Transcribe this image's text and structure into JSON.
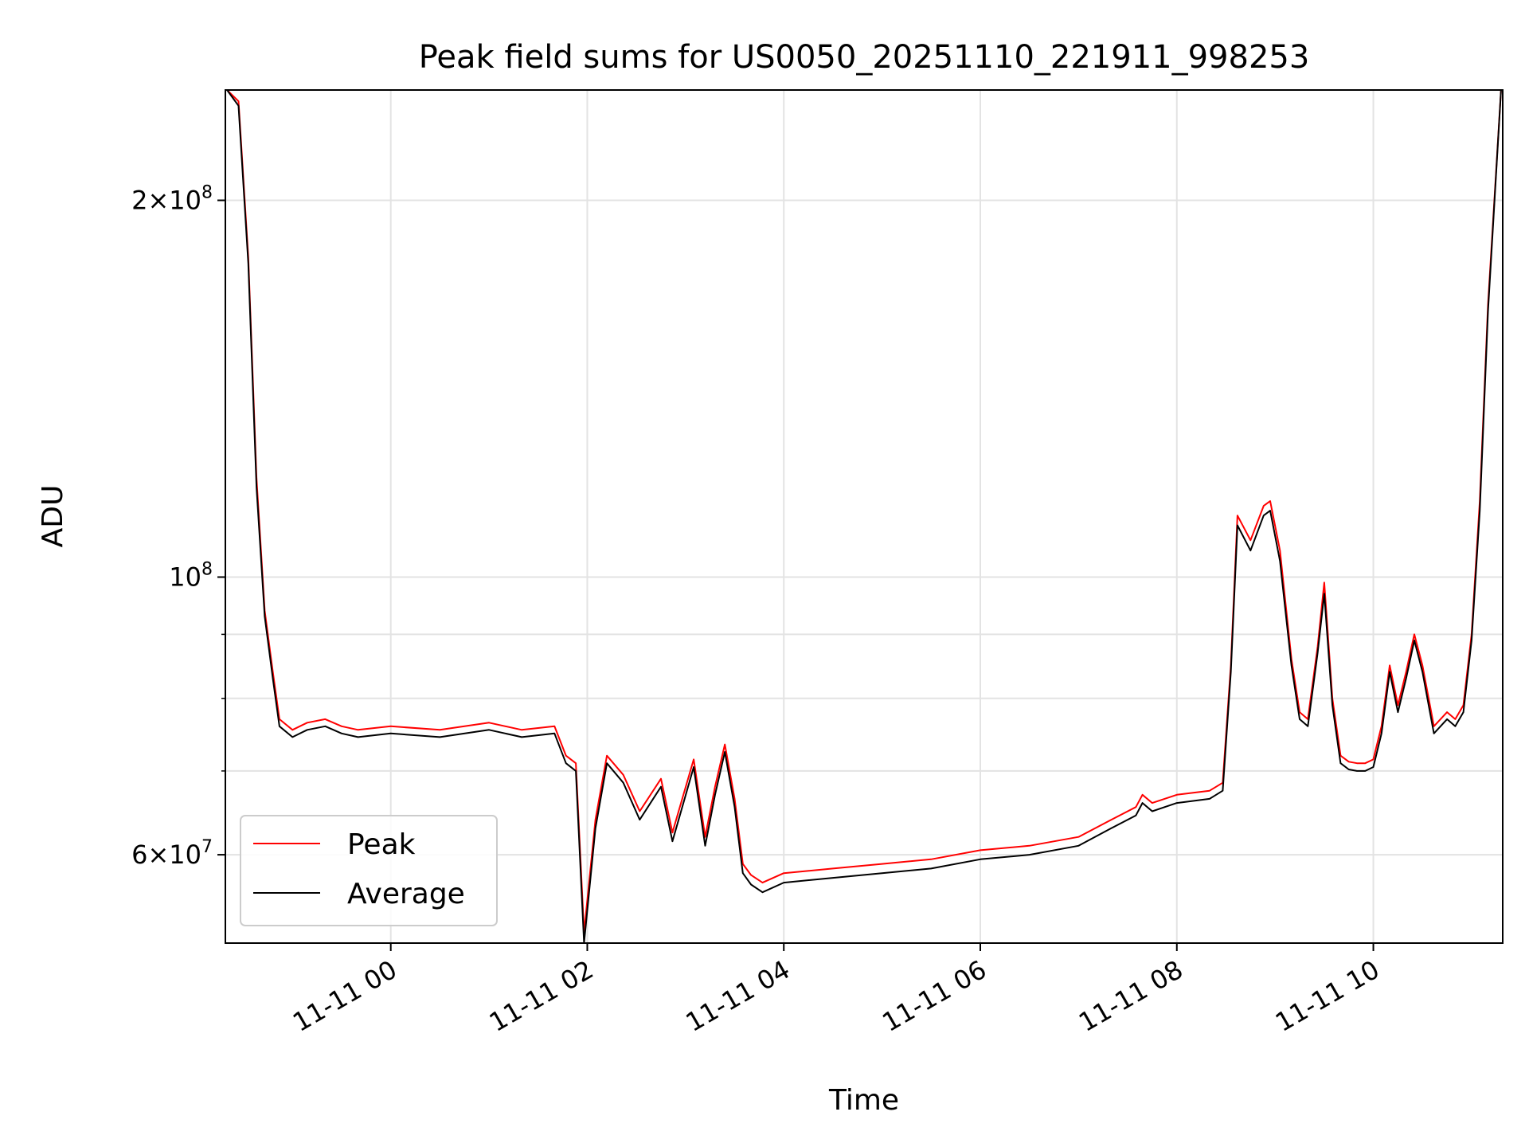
{
  "chart_data": {
    "type": "line",
    "title": "Peak field sums for US0050_20251110_221911_998253",
    "xlabel": "Time",
    "ylabel": "ADU",
    "x_range": [
      "2025-11-10 22:19",
      "2025-11-11 11:19"
    ],
    "ylim": [
      51000000,
      245000000
    ],
    "yscale": "log",
    "grid": true,
    "legend_position": "lower-left",
    "x_ticks": [
      "11-11 00",
      "11-11 02",
      "11-11 04",
      "11-11 06",
      "11-11 08",
      "11-11 10"
    ],
    "y_ticks": [
      {
        "value": 200000000,
        "mantissa": "2",
        "exponent": "8"
      },
      {
        "value": 100000000,
        "mantissa": "",
        "exponent": "8"
      },
      {
        "value": 60000000,
        "mantissa": "6",
        "exponent": "7"
      }
    ],
    "series": [
      {
        "name": "Peak",
        "color": "#ff0000",
        "x": [
          "2025-11-10 22:20",
          "2025-11-10 22:27",
          "2025-11-10 22:33",
          "2025-11-10 22:38",
          "2025-11-10 22:43",
          "2025-11-10 22:48",
          "2025-11-10 22:52",
          "2025-11-10 23:00",
          "2025-11-10 23:09",
          "2025-11-10 23:20",
          "2025-11-10 23:30",
          "2025-11-10 23:40",
          "2025-11-11 00:00",
          "2025-11-11 00:30",
          "2025-11-11 01:00",
          "2025-11-11 01:20",
          "2025-11-11 01:40",
          "2025-11-11 01:47",
          "2025-11-11 01:53",
          "2025-11-11 01:58",
          "2025-11-11 02:05",
          "2025-11-11 02:12",
          "2025-11-11 02:22",
          "2025-11-11 02:32",
          "2025-11-11 02:45",
          "2025-11-11 02:52",
          "2025-11-11 03:05",
          "2025-11-11 03:12",
          "2025-11-11 03:18",
          "2025-11-11 03:24",
          "2025-11-11 03:30",
          "2025-11-11 03:35",
          "2025-11-11 03:40",
          "2025-11-11 03:47",
          "2025-11-11 04:00",
          "2025-11-11 04:30",
          "2025-11-11 05:00",
          "2025-11-11 05:30",
          "2025-11-11 06:00",
          "2025-11-11 06:30",
          "2025-11-11 07:00",
          "2025-11-11 07:20",
          "2025-11-11 07:35",
          "2025-11-11 07:39",
          "2025-11-11 07:45",
          "2025-11-11 08:00",
          "2025-11-11 08:20",
          "2025-11-11 08:28",
          "2025-11-11 08:33",
          "2025-11-11 08:37",
          "2025-11-11 08:45",
          "2025-11-11 08:53",
          "2025-11-11 08:57",
          "2025-11-11 09:03",
          "2025-11-11 09:10",
          "2025-11-11 09:15",
          "2025-11-11 09:20",
          "2025-11-11 09:26",
          "2025-11-11 09:30",
          "2025-11-11 09:35",
          "2025-11-11 09:40",
          "2025-11-11 09:45",
          "2025-11-11 09:50",
          "2025-11-11 09:55",
          "2025-11-11 10:00",
          "2025-11-11 10:05",
          "2025-11-11 10:10",
          "2025-11-11 10:15",
          "2025-11-11 10:20",
          "2025-11-11 10:25",
          "2025-11-11 10:30",
          "2025-11-11 10:37",
          "2025-11-11 10:45",
          "2025-11-11 10:50",
          "2025-11-11 10:55",
          "2025-11-11 11:00",
          "2025-11-11 11:05",
          "2025-11-11 11:10",
          "2025-11-11 11:18"
        ],
        "y": [
          245000000,
          240000000,
          180000000,
          120000000,
          94000000,
          84000000,
          77000000,
          75500000,
          76500000,
          77000000,
          76000000,
          75500000,
          76000000,
          75500000,
          76500000,
          75500000,
          76000000,
          72000000,
          71000000,
          52000000,
          64000000,
          72000000,
          69500000,
          65000000,
          69000000,
          62500000,
          71500000,
          62000000,
          68000000,
          73500000,
          66500000,
          59000000,
          57800000,
          57000000,
          58000000,
          58500000,
          59000000,
          59500000,
          60500000,
          61000000,
          62000000,
          64000000,
          65500000,
          67000000,
          66000000,
          67000000,
          67500000,
          68500000,
          85000000,
          112000000,
          107000000,
          114000000,
          115000000,
          105000000,
          86000000,
          78000000,
          77000000,
          88000000,
          99000000,
          80000000,
          72000000,
          71200000,
          71000000,
          71000000,
          71500000,
          76000000,
          85000000,
          79000000,
          84000000,
          90000000,
          85000000,
          76000000,
          78000000,
          77000000,
          79000000,
          90000000,
          115000000,
          165000000,
          245000000
        ]
      },
      {
        "name": "Average",
        "color": "#000000",
        "x": [
          "2025-11-10 22:20",
          "2025-11-10 22:27",
          "2025-11-10 22:33",
          "2025-11-10 22:38",
          "2025-11-10 22:43",
          "2025-11-10 22:48",
          "2025-11-10 22:52",
          "2025-11-10 23:00",
          "2025-11-10 23:09",
          "2025-11-10 23:20",
          "2025-11-10 23:30",
          "2025-11-10 23:40",
          "2025-11-11 00:00",
          "2025-11-11 00:30",
          "2025-11-11 01:00",
          "2025-11-11 01:20",
          "2025-11-11 01:40",
          "2025-11-11 01:47",
          "2025-11-11 01:53",
          "2025-11-11 01:58",
          "2025-11-11 02:05",
          "2025-11-11 02:12",
          "2025-11-11 02:22",
          "2025-11-11 02:32",
          "2025-11-11 02:45",
          "2025-11-11 02:52",
          "2025-11-11 03:05",
          "2025-11-11 03:12",
          "2025-11-11 03:18",
          "2025-11-11 03:24",
          "2025-11-11 03:30",
          "2025-11-11 03:35",
          "2025-11-11 03:40",
          "2025-11-11 03:47",
          "2025-11-11 04:00",
          "2025-11-11 04:30",
          "2025-11-11 05:00",
          "2025-11-11 05:30",
          "2025-11-11 06:00",
          "2025-11-11 06:30",
          "2025-11-11 07:00",
          "2025-11-11 07:20",
          "2025-11-11 07:35",
          "2025-11-11 07:39",
          "2025-11-11 07:45",
          "2025-11-11 08:00",
          "2025-11-11 08:20",
          "2025-11-11 08:28",
          "2025-11-11 08:33",
          "2025-11-11 08:37",
          "2025-11-11 08:45",
          "2025-11-11 08:53",
          "2025-11-11 08:57",
          "2025-11-11 09:03",
          "2025-11-11 09:10",
          "2025-11-11 09:15",
          "2025-11-11 09:20",
          "2025-11-11 09:26",
          "2025-11-11 09:30",
          "2025-11-11 09:35",
          "2025-11-11 09:40",
          "2025-11-11 09:45",
          "2025-11-11 09:50",
          "2025-11-11 09:55",
          "2025-11-11 10:00",
          "2025-11-11 10:05",
          "2025-11-11 10:10",
          "2025-11-11 10:15",
          "2025-11-11 10:20",
          "2025-11-11 10:25",
          "2025-11-11 10:30",
          "2025-11-11 10:37",
          "2025-11-11 10:45",
          "2025-11-11 10:50",
          "2025-11-11 10:55",
          "2025-11-11 11:00",
          "2025-11-11 11:05",
          "2025-11-11 11:10",
          "2025-11-11 11:18"
        ],
        "y": [
          245000000,
          238000000,
          178000000,
          118000000,
          93000000,
          83000000,
          76000000,
          74500000,
          75500000,
          76000000,
          75000000,
          74500000,
          75000000,
          74500000,
          75500000,
          74500000,
          75000000,
          71000000,
          70000000,
          51000000,
          63000000,
          71000000,
          68500000,
          64000000,
          68000000,
          61500000,
          70500000,
          61000000,
          67000000,
          72500000,
          65500000,
          58000000,
          56800000,
          56000000,
          57000000,
          57500000,
          58000000,
          58500000,
          59500000,
          60000000,
          61000000,
          63000000,
          64500000,
          66000000,
          65000000,
          66000000,
          66500000,
          67500000,
          84000000,
          110000000,
          105000000,
          112000000,
          113000000,
          103000000,
          85000000,
          77000000,
          76000000,
          87000000,
          97000000,
          79000000,
          71000000,
          70200000,
          70000000,
          70000000,
          70500000,
          75000000,
          84000000,
          78000000,
          83000000,
          89000000,
          84000000,
          75000000,
          77000000,
          76000000,
          78000000,
          89000000,
          113000000,
          163000000,
          245000000
        ]
      }
    ]
  }
}
